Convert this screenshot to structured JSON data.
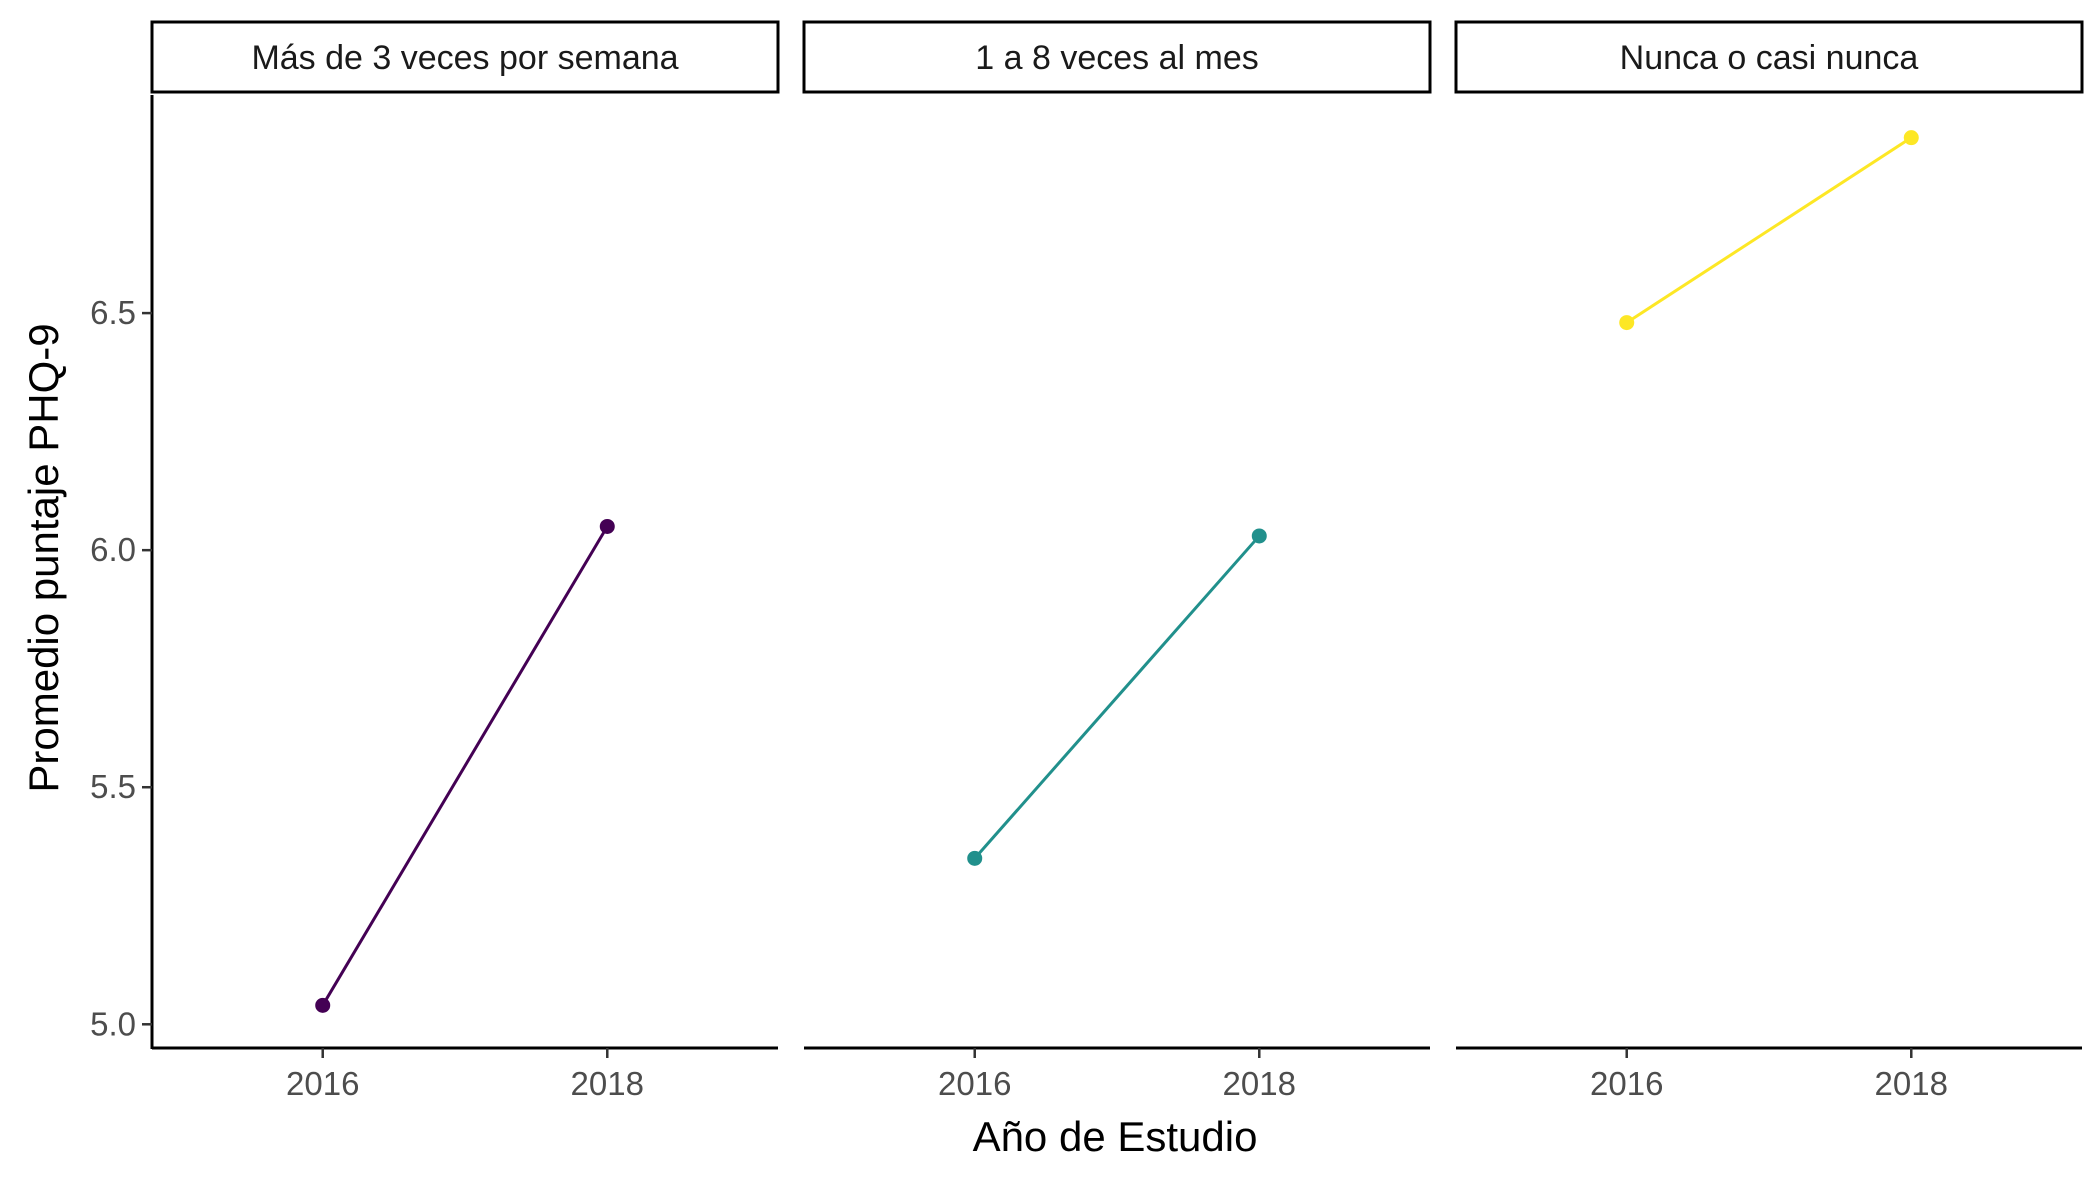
{
  "chart_data": {
    "type": "line",
    "facet_variable": "frecuencia",
    "xlabel": "Año de Estudio",
    "ylabel": "Promedio puntaje PHQ-9",
    "x_ticks": [
      "2016",
      "2018"
    ],
    "xlim": [
      2014.8,
      2019.2
    ],
    "y_ticks": [
      "5.0",
      "5.5",
      "6.0",
      "6.5"
    ],
    "ylim": [
      4.95,
      6.96
    ],
    "grid": false,
    "legend": "none",
    "panels": [
      {
        "label": "Más de 3 veces por semana",
        "color": "#440154",
        "x": [
          2016,
          2018
        ],
        "y": [
          5.04,
          6.05
        ]
      },
      {
        "label": "1 a 8 veces al mes",
        "color": "#21908C",
        "x": [
          2016,
          2018
        ],
        "y": [
          5.35,
          6.03
        ]
      },
      {
        "label": "Nunca o casi nunca",
        "color": "#FDE725",
        "x": [
          2016,
          2018
        ],
        "y": [
          6.48,
          6.87
        ]
      }
    ]
  }
}
